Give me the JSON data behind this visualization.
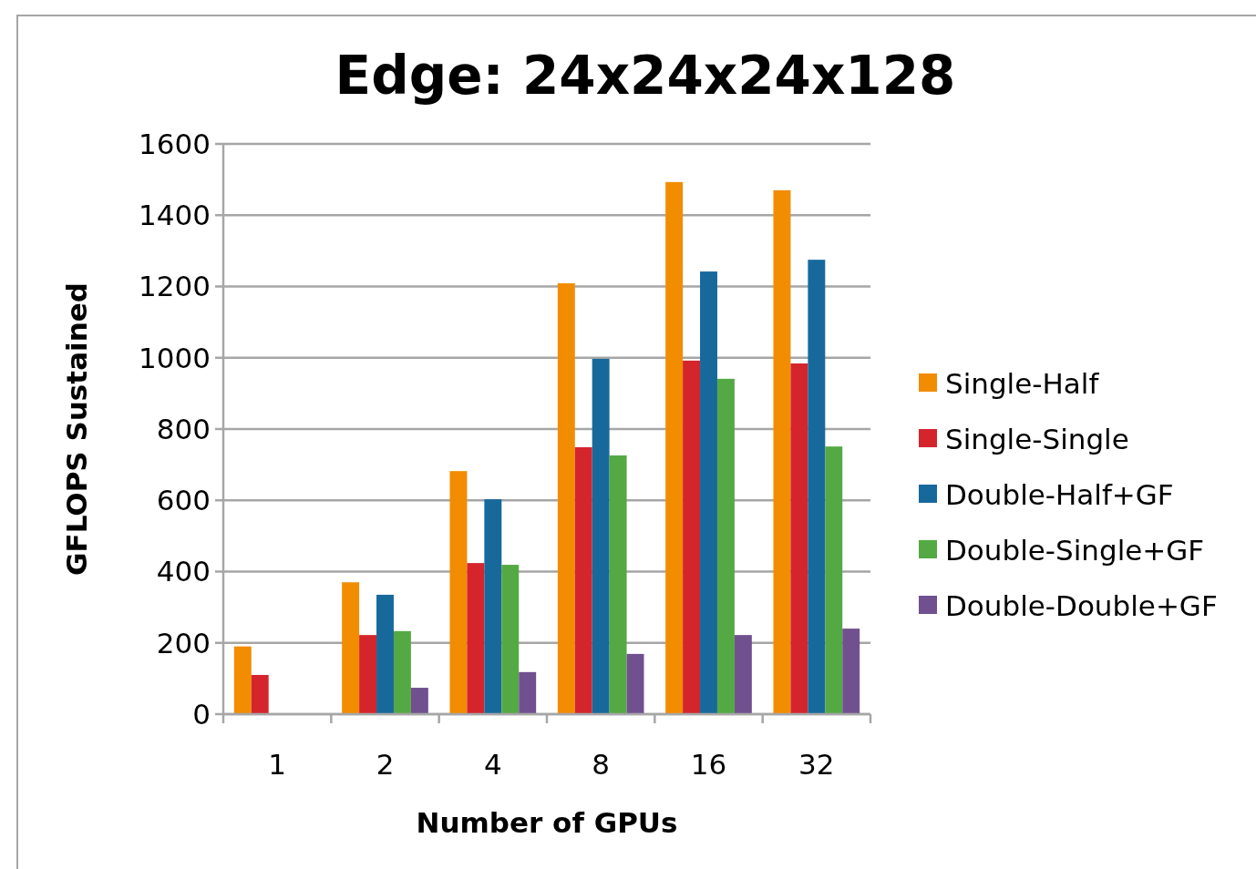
{
  "chart_data": {
    "type": "bar",
    "title": "Edge: 24x24x24x128",
    "xlabel": "Number of GPUs",
    "ylabel": "GFLOPS Sustained",
    "categories": [
      "1",
      "2",
      "4",
      "8",
      "16",
      "32"
    ],
    "series": [
      {
        "name": "Single-Half",
        "color": "#f28c00",
        "values": [
          190,
          370,
          682,
          1209,
          1493,
          1470
        ]
      },
      {
        "name": "Single-Single",
        "color": "#d4252d",
        "values": [
          110,
          222,
          424,
          749,
          992,
          984
        ]
      },
      {
        "name": "Double-Half+GF",
        "color": "#17699c",
        "values": [
          null,
          335,
          603,
          997,
          1242,
          1275
        ]
      },
      {
        "name": "Double-Single+GF",
        "color": "#55a944",
        "values": [
          null,
          233,
          419,
          726,
          941,
          751
        ]
      },
      {
        "name": "Double-Double+GF",
        "color": "#70508f",
        "values": [
          null,
          74,
          118,
          169,
          222,
          240
        ]
      }
    ],
    "ylim": [
      0,
      1600
    ],
    "yticks": [
      0,
      200,
      400,
      600,
      800,
      1000,
      1200,
      1400,
      1600
    ],
    "grid": "y",
    "legend": "right"
  }
}
